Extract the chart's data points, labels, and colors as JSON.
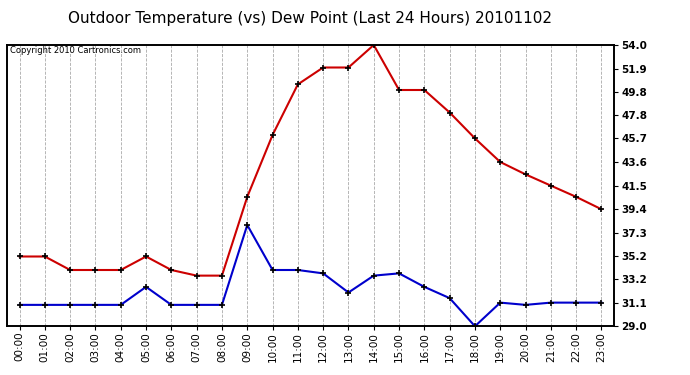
{
  "title": "Outdoor Temperature (vs) Dew Point (Last 24 Hours) 20101102",
  "copyright": "Copyright 2010 Cartronics.com",
  "hours": [
    "00:00",
    "01:00",
    "02:00",
    "03:00",
    "04:00",
    "05:00",
    "06:00",
    "07:00",
    "08:00",
    "09:00",
    "10:00",
    "11:00",
    "12:00",
    "13:00",
    "14:00",
    "15:00",
    "16:00",
    "17:00",
    "18:00",
    "19:00",
    "20:00",
    "21:00",
    "22:00",
    "23:00"
  ],
  "temp": [
    35.2,
    35.2,
    34.0,
    34.0,
    34.0,
    35.2,
    34.0,
    33.5,
    33.5,
    40.5,
    46.0,
    50.5,
    52.0,
    52.0,
    54.0,
    50.0,
    50.0,
    48.0,
    45.7,
    43.6,
    42.5,
    41.5,
    40.5,
    39.4
  ],
  "dew": [
    30.9,
    30.9,
    30.9,
    30.9,
    30.9,
    32.5,
    30.9,
    30.9,
    30.9,
    38.0,
    34.0,
    34.0,
    33.7,
    32.0,
    33.5,
    33.7,
    32.5,
    31.5,
    29.0,
    31.1,
    30.9,
    31.1,
    31.1,
    31.1
  ],
  "temp_color": "#cc0000",
  "dew_color": "#0000cc",
  "grid_color": "#aaaaaa",
  "bg_color": "#ffffff",
  "ylim_min": 29.0,
  "ylim_max": 54.0,
  "yticks": [
    29.0,
    31.1,
    33.2,
    35.2,
    37.3,
    39.4,
    41.5,
    43.6,
    45.7,
    47.8,
    49.8,
    51.9,
    54.0
  ],
  "marker": "+",
  "marker_size": 5,
  "marker_linewidth": 1.2,
  "line_width": 1.5,
  "title_fontsize": 11,
  "copyright_fontsize": 6,
  "tick_fontsize": 7.5,
  "ylabel_fontsize": 8
}
